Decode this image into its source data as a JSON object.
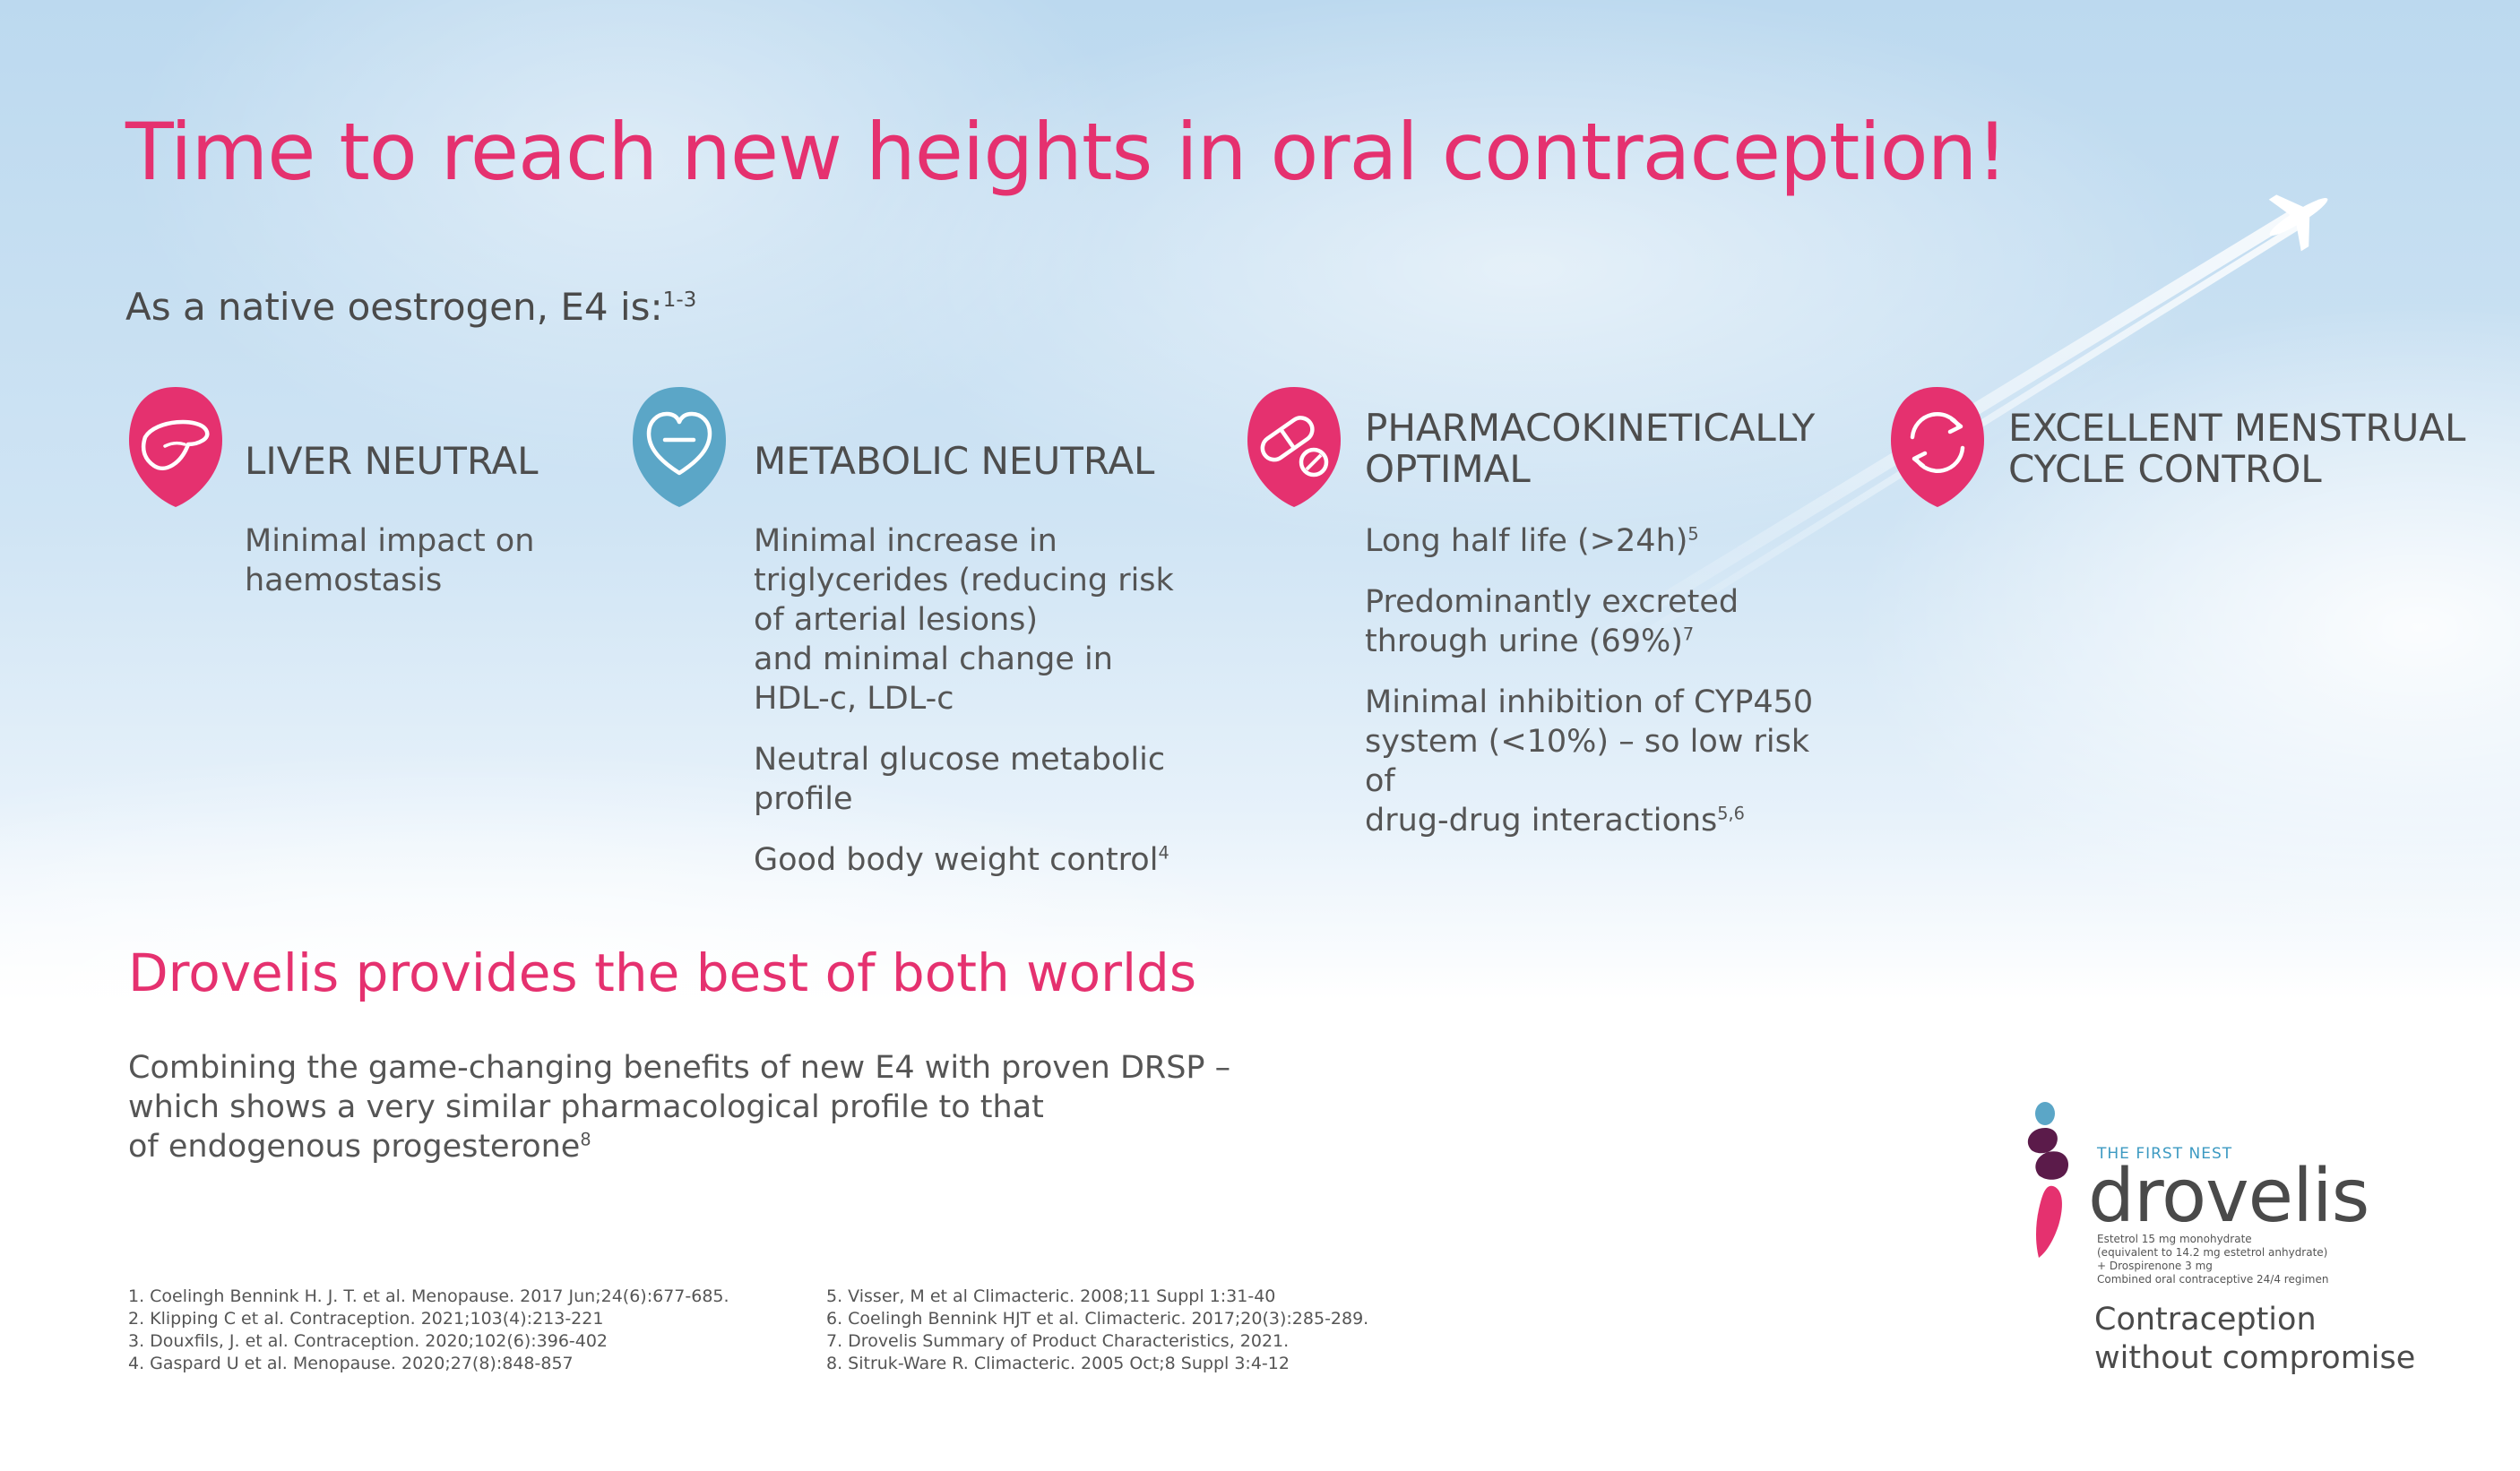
{
  "headline": "Time to reach new heights in oral contraception!",
  "intro": {
    "text": "As a native oestrogen, E4 is:",
    "sup": "1-3"
  },
  "columns": [
    {
      "icon": "liver-icon",
      "color": "#e5316f",
      "title": [
        "LIVER NEUTRAL"
      ],
      "body": [
        {
          "lines": [
            "Minimal impact on",
            "haemostasis"
          ],
          "sup": ""
        }
      ]
    },
    {
      "icon": "heart-minus-icon",
      "color": "#5ba6c7",
      "title": [
        "METABOLIC NEUTRAL"
      ],
      "body": [
        {
          "lines": [
            "Minimal increase in",
            "triglycerides (reducing risk",
            "of arterial lesions)",
            "and minimal change in",
            "HDL-c, LDL-c"
          ],
          "sup": ""
        },
        {
          "lines": [
            "Neutral glucose metabolic",
            "profile"
          ],
          "sup": ""
        },
        {
          "lines": [
            "Good body weight control"
          ],
          "sup": "4"
        }
      ]
    },
    {
      "icon": "pill-icon",
      "color": "#e5316f",
      "title": [
        "PHARMACOKINETICALLY",
        "OPTIMAL"
      ],
      "body": [
        {
          "lines": [
            "Long half life (>24h)"
          ],
          "sup": "5"
        },
        {
          "lines": [
            "Predominantly excreted",
            "through urine (69%)"
          ],
          "sup": "7"
        },
        {
          "lines": [
            "Minimal inhibition of CYP450",
            "system (<10%) – so low risk of",
            "drug-drug interactions"
          ],
          "sup": "5,6"
        }
      ]
    },
    {
      "icon": "cycle-arrows-icon",
      "color": "#e5316f",
      "title": [
        "EXCELLENT MENSTRUAL",
        "CYCLE CONTROL"
      ],
      "body": []
    }
  ],
  "sub_headline": "Drovelis provides the best of both worlds",
  "combine": {
    "lines": [
      "Combining the game-changing benefits of new E4 with proven DRSP –",
      "which shows a very similar pharmacological profile to that",
      "of endogenous progesterone"
    ],
    "sup": "8"
  },
  "references_left": [
    "1. Coelingh Bennink H. J. T. et al. Menopause. 2017 Jun;24(6):677-685.",
    "2. Klipping C et al. Contraception. 2021;103(4):213-221",
    "3. Douxfils, J. et al. Contraception. 2020;102(6):396-402",
    "4. Gaspard U et al. Menopause. 2020;27(8):848-857"
  ],
  "references_right": [
    "5. Visser, M et al Climacteric. 2008;11 Suppl 1:31-40",
    "6. Coelingh Bennink HJT et al. Climacteric. 2017;20(3):285-289.",
    "7. Drovelis Summary of Product Characteristics, 2021.",
    "8. Sitruk-Ware R. Climacteric. 2005 Oct;8 Suppl 3:4-12"
  ],
  "logo": {
    "tag": "THE FIRST NEST",
    "word": "drovelis",
    "small_lines": [
      "Estetrol 15 mg monohydrate",
      "(equivalent to 14.2 mg estetrol anhydrate)",
      "+ Drospirenone 3 mg",
      "Combined oral contraceptive 24/4 regimen"
    ],
    "tagline": [
      "Contraception",
      "without compromise"
    ]
  },
  "colors": {
    "accent": "#e5316f",
    "teal": "#5ba6c7",
    "plum": "#5b1b4a"
  }
}
